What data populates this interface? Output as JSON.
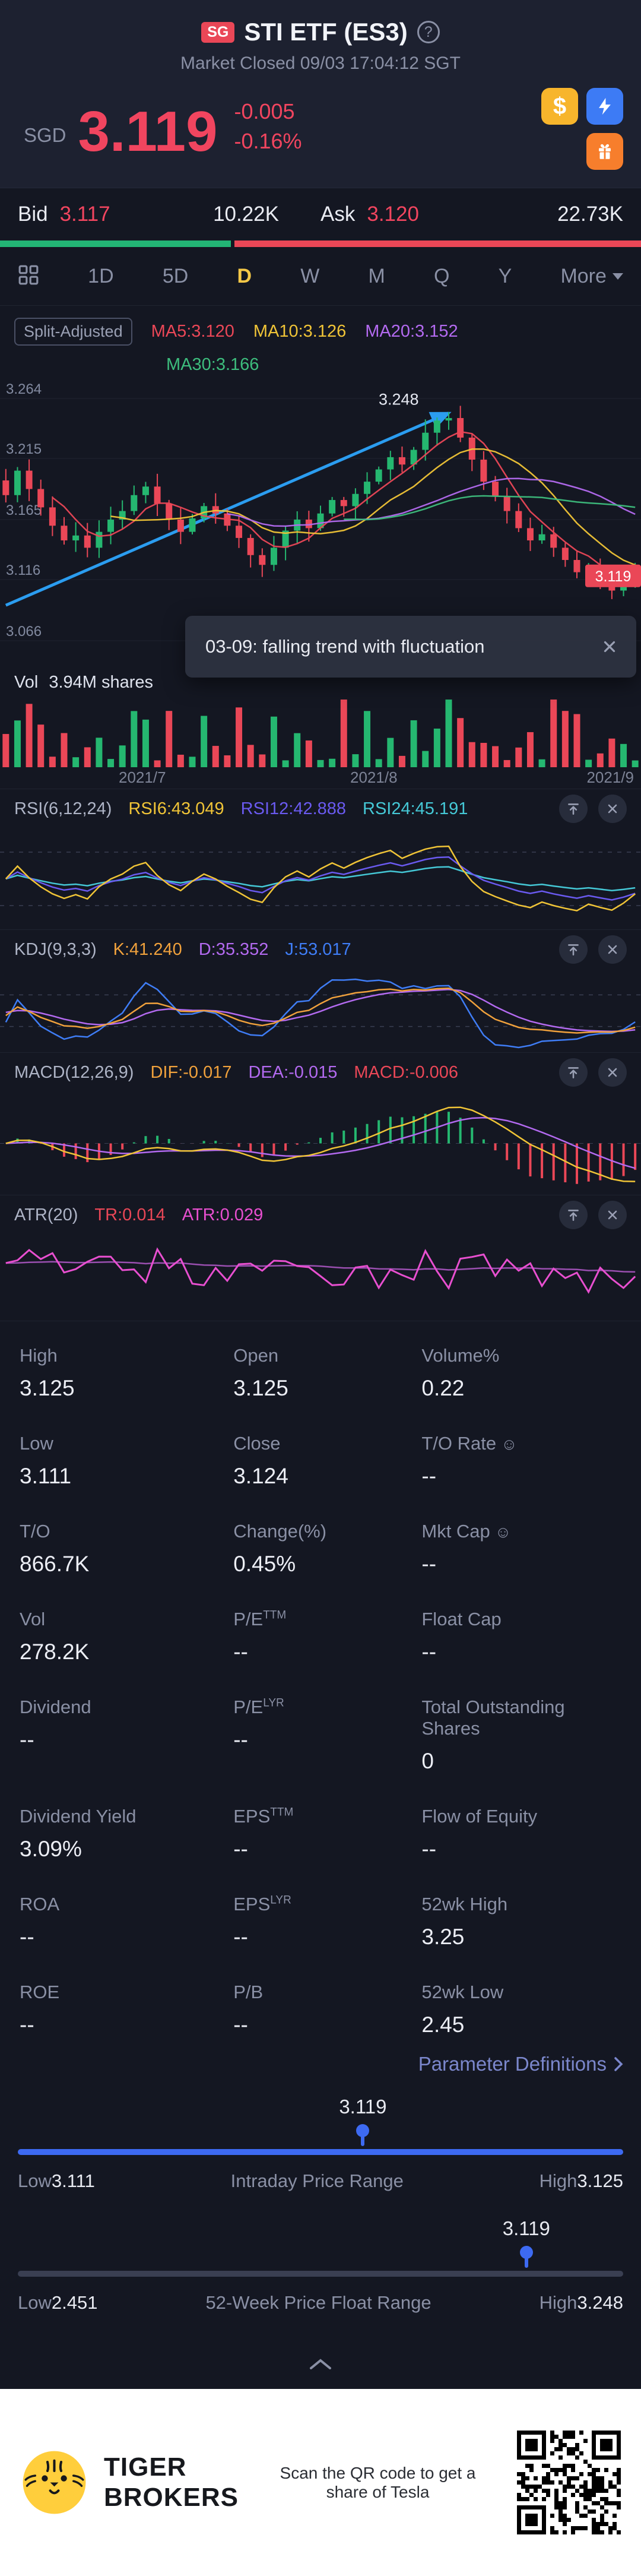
{
  "header": {
    "exchange_badge": "SG",
    "title": "STI ETF (ES3)",
    "subtitle": "Market Closed 09/03 17:04:12 SGT"
  },
  "icons": {
    "help": "?",
    "dollar": "$",
    "info": "☺"
  },
  "quote": {
    "currency": "SGD",
    "price": "3.119",
    "change": "-0.005",
    "change_pct": "-0.16%"
  },
  "bidask": {
    "bid_label": "Bid",
    "bid_price": "3.117",
    "bid_size": "10.22K",
    "ask_label": "Ask",
    "ask_price": "3.120",
    "ask_size": "22.73K",
    "bid_ratio_pct": 36
  },
  "periods": {
    "tabs": [
      "1D",
      "5D",
      "D",
      "W",
      "M",
      "Q",
      "Y"
    ],
    "selected": "D",
    "more_label": "More"
  },
  "legend": {
    "adjust_label": "Split-Adjusted",
    "ma5": "MA5:3.120",
    "ma10": "MA10:3.126",
    "ma20": "MA20:3.152",
    "ma30": "MA30:3.166"
  },
  "toast": {
    "text": "03-09: falling trend with fluctuation"
  },
  "volume": {
    "label": "Vol",
    "value": "3.94M shares"
  },
  "panels": {
    "rsi": {
      "name": "RSI(6,12,24)",
      "v1": "RSI6:43.049",
      "v2": "RSI12:42.888",
      "v3": "RSI24:45.191"
    },
    "kdj": {
      "name": "KDJ(9,3,3)",
      "v1": "K:41.240",
      "v2": "D:35.352",
      "v3": "J:53.017"
    },
    "macd": {
      "name": "MACD(12,26,9)",
      "v1": "DIF:-0.017",
      "v2": "DEA:-0.015",
      "v3": "MACD:-0.006"
    },
    "atr": {
      "name": "ATR(20)",
      "v1": "TR:0.014",
      "v2": "ATR:0.029"
    }
  },
  "stats": {
    "cells": [
      {
        "label": "High",
        "value": "3.125"
      },
      {
        "label": "Open",
        "value": "3.125"
      },
      {
        "label": "Volume%",
        "value": "0.22"
      },
      {
        "label": "Low",
        "value": "3.111"
      },
      {
        "label": "Close",
        "value": "3.124"
      },
      {
        "label": "T/O Rate",
        "icon": true,
        "value": "--"
      },
      {
        "label": "T/O",
        "value": "866.7K"
      },
      {
        "label": "Change(%)",
        "value": "0.45%"
      },
      {
        "label": "Mkt Cap",
        "icon": true,
        "value": "--"
      },
      {
        "label": "Vol",
        "value": "278.2K"
      },
      {
        "label": "P/E",
        "sup": "TTM",
        "value": "--"
      },
      {
        "label": "Float Cap",
        "value": "--"
      },
      {
        "label": "Dividend",
        "value": "--"
      },
      {
        "label": "P/E",
        "sup": "LYR",
        "value": "--"
      },
      {
        "label": "Total Outstanding Shares",
        "value": "0"
      },
      {
        "label": "Dividend Yield",
        "value": "3.09%"
      },
      {
        "label": "EPS",
        "sup": "TTM",
        "value": "--"
      },
      {
        "label": "Flow of Equity",
        "value": "--"
      },
      {
        "label": "ROA",
        "value": "--"
      },
      {
        "label": "EPS",
        "sup": "LYR",
        "value": "--"
      },
      {
        "label": "52wk High",
        "value": "3.25"
      },
      {
        "label": "ROE",
        "value": "--"
      },
      {
        "label": "P/B",
        "value": "--"
      },
      {
        "label": "52wk Low",
        "value": "2.45"
      }
    ]
  },
  "param_link": "Parameter Definitions",
  "sliders": {
    "intraday": {
      "value": "3.119",
      "low_label": "Low",
      "low": "3.111",
      "title": "Intraday Price Range",
      "high_label": "High",
      "high": "3.125",
      "pos_pct": 57,
      "filled": true
    },
    "week52": {
      "value": "3.119",
      "low_label": "Low",
      "low": "2.451",
      "title": "52-Week Price Float Range",
      "high_label": "High",
      "high": "3.248",
      "pos_pct": 84,
      "filled": false
    }
  },
  "footer": {
    "brand_line1": "TIGER",
    "brand_line2": "BROKERS",
    "promo": "Scan the QR code to get a share of Tesla"
  },
  "chart_data": {
    "type": "candlestick",
    "title": "STI ETF (ES3) daily chart",
    "x_axis_labels": [
      "2021/7",
      "2021/8",
      "2021/9"
    ],
    "y_axis_labels": [
      3.264,
      3.215,
      3.165,
      3.116,
      3.066
    ],
    "ylim": [
      3.05,
      3.28
    ],
    "closes": [
      3.185,
      3.205,
      3.19,
      3.175,
      3.16,
      3.148,
      3.152,
      3.142,
      3.155,
      3.165,
      3.172,
      3.185,
      3.192,
      3.178,
      3.165,
      3.155,
      3.166,
      3.176,
      3.17,
      3.16,
      3.15,
      3.136,
      3.128,
      3.142,
      3.156,
      3.165,
      3.158,
      3.17,
      3.181,
      3.176,
      3.186,
      3.196,
      3.206,
      3.216,
      3.21,
      3.222,
      3.236,
      3.246,
      3.248,
      3.232,
      3.214,
      3.196,
      3.184,
      3.172,
      3.158,
      3.148,
      3.153,
      3.142,
      3.132,
      3.122,
      3.127,
      3.117,
      3.107,
      3.112,
      3.119
    ],
    "ma_periods": [
      5,
      10,
      20,
      30
    ],
    "trendline": {
      "from_index": 0,
      "from_price": 3.095,
      "to_index": 38,
      "to_price": 3.252,
      "label": "3.248"
    },
    "last_price": "3.119"
  }
}
